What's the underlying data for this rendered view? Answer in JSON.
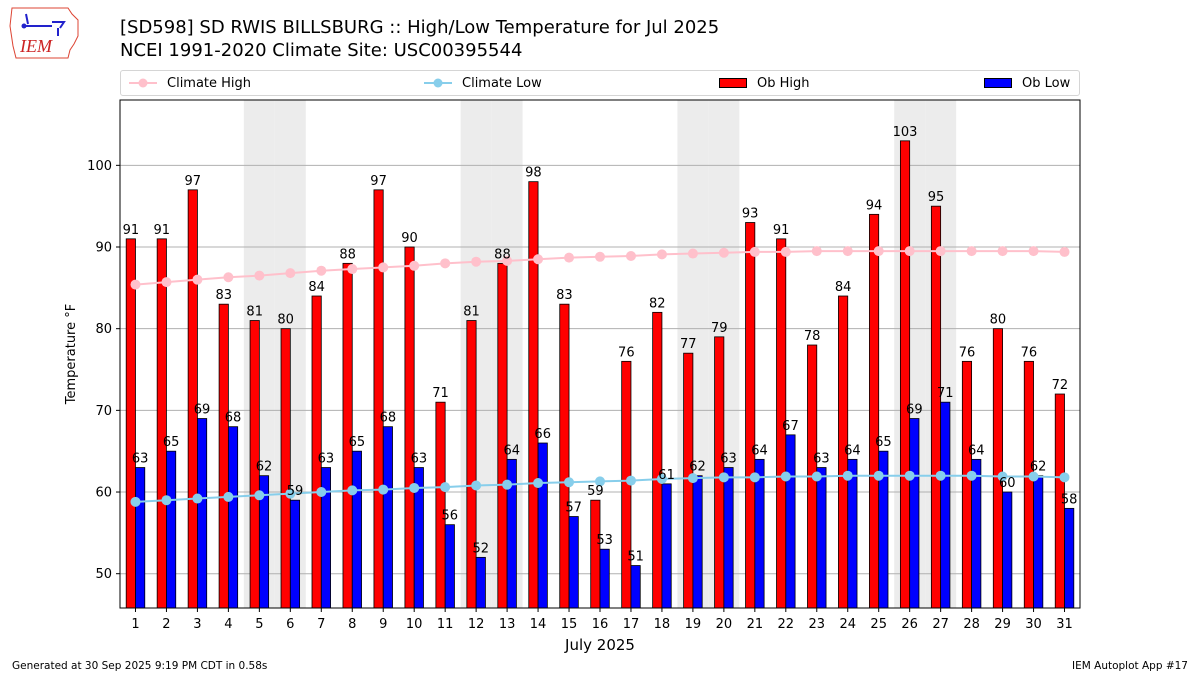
{
  "header": {
    "title_line1": "[SD598] SD RWIS BILLSBURG :: High/Low Temperature for Jul 2025",
    "title_line2": "NCEI 1991-2020 Climate Site: USC00395544",
    "logo_text": "IEM"
  },
  "legend": {
    "climate_high": "Climate High",
    "climate_low": "Climate Low",
    "ob_high": "Ob High",
    "ob_low": "Ob Low"
  },
  "footer": {
    "generated": "Generated at 30 Sep 2025 9:19 PM CDT in 0.58s",
    "app": "IEM Autoplot App #17"
  },
  "colors": {
    "ob_high": "#ff0000",
    "ob_low": "#0000ff",
    "climate_high": "#ffc0cb",
    "climate_low": "#87ceeb",
    "weekend_shade": "#ececec"
  },
  "chart_data": {
    "type": "bar",
    "title": "[SD598] SD RWIS BILLSBURG :: High/Low Temperature for Jul 2025",
    "subtitle": "NCEI 1991-2020 Climate Site: USC00395544",
    "xlabel": "July 2025",
    "ylabel": "Temperature °F",
    "ylim": [
      45.8,
      108.0
    ],
    "yticks": [
      50,
      60,
      70,
      80,
      90,
      100
    ],
    "grid": true,
    "legend_position": "top",
    "categories": [
      "1",
      "2",
      "3",
      "4",
      "5",
      "6",
      "7",
      "8",
      "9",
      "10",
      "11",
      "12",
      "13",
      "14",
      "15",
      "16",
      "17",
      "18",
      "19",
      "20",
      "21",
      "22",
      "23",
      "24",
      "25",
      "26",
      "27",
      "28",
      "29",
      "30",
      "31"
    ],
    "weekend_days": [
      5,
      6,
      12,
      13,
      19,
      20,
      26,
      27
    ],
    "series": [
      {
        "name": "Ob High",
        "kind": "bar",
        "values": [
          91,
          91,
          97,
          83,
          81,
          80,
          84,
          88,
          97,
          90,
          71,
          81,
          88,
          98,
          83,
          59,
          76,
          82,
          77,
          79,
          93,
          91,
          78,
          84,
          94,
          103,
          95,
          76,
          80,
          76,
          72
        ]
      },
      {
        "name": "Ob Low",
        "kind": "bar",
        "values": [
          63,
          65,
          69,
          68,
          62,
          59,
          63,
          65,
          68,
          63,
          56,
          52,
          64,
          66,
          57,
          53,
          51,
          61,
          62,
          63,
          64,
          67,
          63,
          64,
          65,
          69,
          71,
          64,
          60,
          62,
          58
        ]
      },
      {
        "name": "Climate High",
        "kind": "line",
        "values": [
          85.4,
          85.7,
          86.0,
          86.3,
          86.5,
          86.8,
          87.1,
          87.3,
          87.5,
          87.7,
          88.0,
          88.2,
          88.3,
          88.5,
          88.7,
          88.8,
          88.9,
          89.1,
          89.2,
          89.3,
          89.4,
          89.4,
          89.5,
          89.5,
          89.5,
          89.5,
          89.5,
          89.5,
          89.5,
          89.5,
          89.4
        ]
      },
      {
        "name": "Climate Low",
        "kind": "line",
        "values": [
          58.8,
          59.0,
          59.2,
          59.4,
          59.6,
          59.8,
          60.0,
          60.2,
          60.3,
          60.5,
          60.6,
          60.8,
          60.9,
          61.1,
          61.2,
          61.3,
          61.4,
          61.6,
          61.7,
          61.8,
          61.8,
          61.9,
          61.9,
          62.0,
          62.0,
          62.0,
          62.0,
          62.0,
          61.9,
          61.9,
          61.8
        ]
      }
    ]
  }
}
